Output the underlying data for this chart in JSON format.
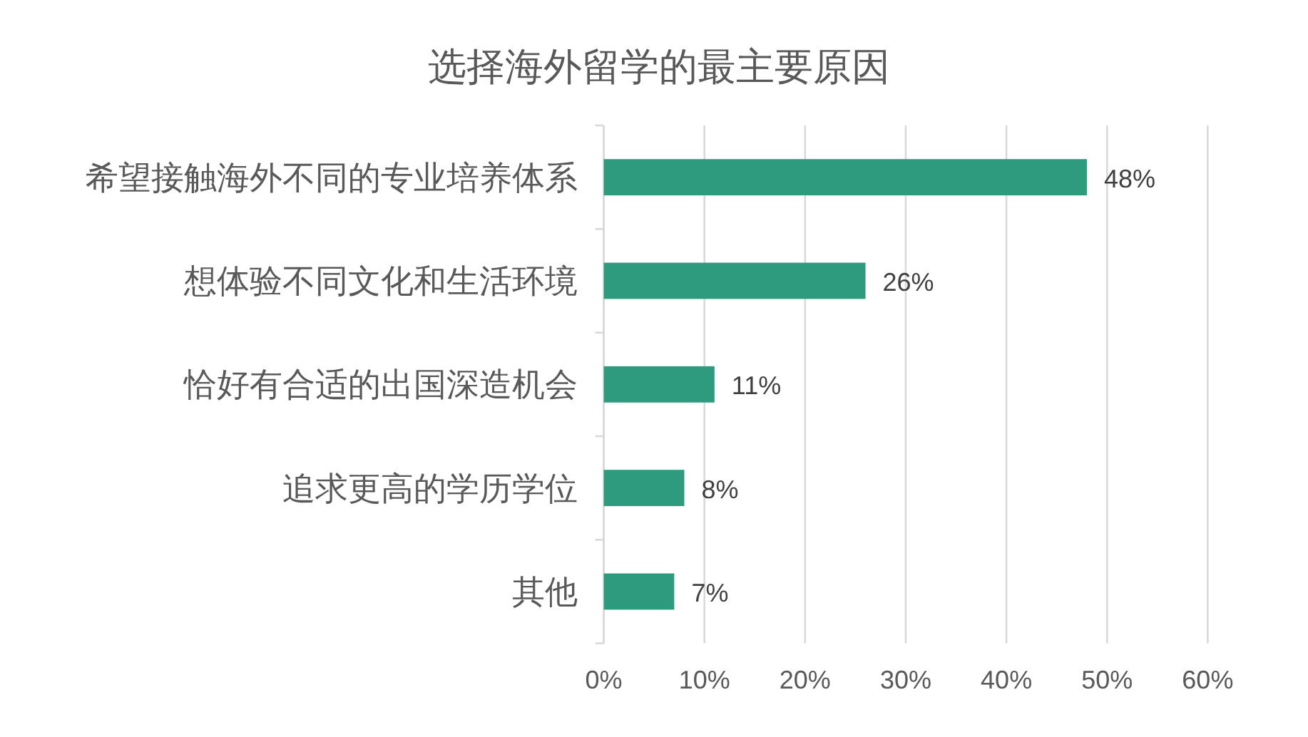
{
  "chart_data": {
    "type": "bar",
    "orientation": "horizontal",
    "title": "选择海外留学的最主要原因",
    "categories": [
      "希望接触海外不同的专业培养体系",
      "想体验不同文化和生活环境",
      "恰好有合适的出国深造机会",
      "追求更高的学历学位",
      "其他"
    ],
    "values": [
      48,
      26,
      11,
      8,
      7
    ],
    "color": "#2e9a7e",
    "value_labels": [
      "48%",
      "26%",
      "11%",
      "8%",
      "7%"
    ],
    "xlim": [
      0,
      60
    ],
    "xticks": [
      {
        "value": 0,
        "label": "0%"
      },
      {
        "value": 10,
        "label": "10%"
      },
      {
        "value": 20,
        "label": "20%"
      },
      {
        "value": 30,
        "label": "30%"
      },
      {
        "value": 40,
        "label": "40%"
      },
      {
        "value": 50,
        "label": "50%"
      },
      {
        "value": 60,
        "label": "60%"
      }
    ],
    "grid": "x",
    "legend": false
  }
}
